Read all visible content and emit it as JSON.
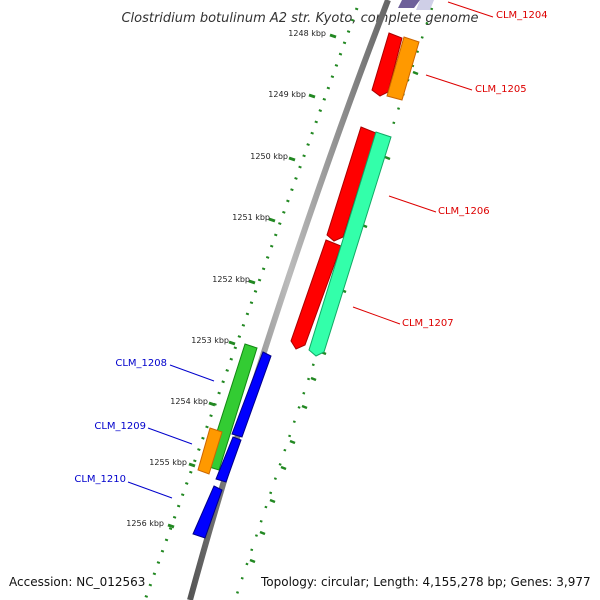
{
  "title": "Clostridium botulinum A2 str. Kyoto, complete genome",
  "footer": {
    "accession": "Accession: NC_012563",
    "topology": "Topology: circular; Length: 4,155,278 bp; Genes: 3,977"
  },
  "ticks": [
    "1248 kbp",
    "1249 kbp",
    "1250 kbp",
    "1251 kbp",
    "1252 kbp",
    "1253 kbp",
    "1254 kbp",
    "1255 kbp",
    "1256 kbp"
  ],
  "genes": [
    {
      "id": "CLM_1204",
      "label": "CLM_1204",
      "color": "#dd0000"
    },
    {
      "id": "CLM_1205",
      "label": "CLM_1205",
      "color": "#dd0000"
    },
    {
      "id": "CLM_1206",
      "label": "CLM_1206",
      "color": "#dd0000"
    },
    {
      "id": "CLM_1207",
      "label": "CLM_1207",
      "color": "#dd0000"
    },
    {
      "id": "CLM_1208",
      "label": "CLM_1208",
      "color": "#0000cc"
    },
    {
      "id": "CLM_1209",
      "label": "CLM_1209",
      "color": "#0000cc"
    },
    {
      "id": "CLM_1210",
      "label": "CLM_1210",
      "color": "#0000cc"
    }
  ],
  "feature_colors": {
    "forward_cds": "#ff0000",
    "reverse_cds": "#0000ff",
    "orange_feature": "#ff9900",
    "green_feature": "#33cc33",
    "teal_feature": "#33ffaa",
    "backbone": "#888888",
    "tick_dots": "#228822"
  }
}
